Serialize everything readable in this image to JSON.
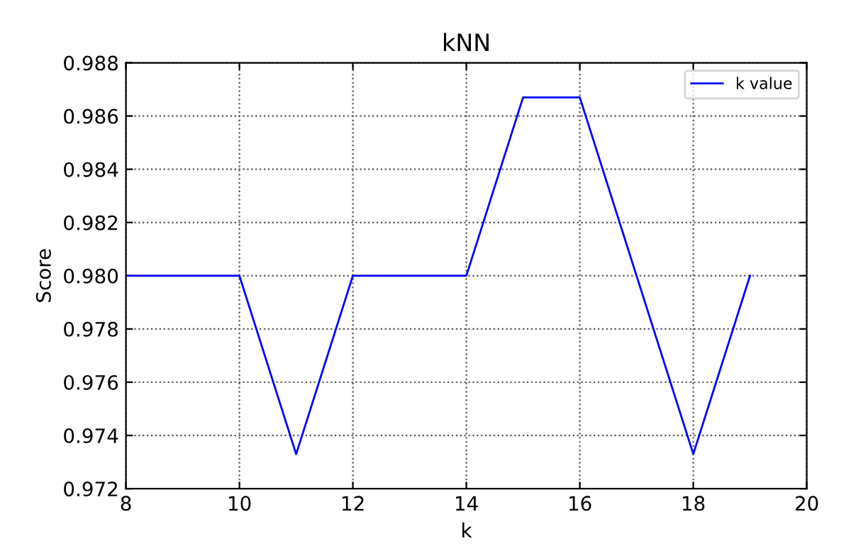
{
  "chart_data": {
    "type": "line",
    "title": "kNN",
    "xlabel": "k",
    "ylabel": "Score",
    "x": [
      8,
      9,
      10,
      11,
      12,
      13,
      14,
      15,
      16,
      17,
      18,
      19
    ],
    "series": [
      {
        "name": "k value",
        "color": "#0000ff",
        "values": [
          0.98,
          0.98,
          0.98,
          0.9733,
          0.98,
          0.98,
          0.98,
          0.9867,
          0.9867,
          0.98,
          0.9733,
          0.98
        ]
      }
    ],
    "xlim": [
      8,
      20
    ],
    "xticks": [
      8,
      10,
      12,
      14,
      16,
      18,
      20
    ],
    "ylim": [
      0.972,
      0.988
    ],
    "yticks": [
      {
        "value": 0.972,
        "label": "0.972"
      },
      {
        "value": 0.974,
        "label": "0.974"
      },
      {
        "value": 0.976,
        "label": "0.976"
      },
      {
        "value": 0.978,
        "label": "0.978"
      },
      {
        "value": 0.98,
        "label": "0.980"
      },
      {
        "value": 0.982,
        "label": "0.982"
      },
      {
        "value": 0.984,
        "label": "0.984"
      },
      {
        "value": 0.986,
        "label": "0.986"
      },
      {
        "value": 0.988,
        "label": "0.988"
      }
    ],
    "grid": true,
    "legend": "top right",
    "marker": "none",
    "line_style": "solid"
  }
}
